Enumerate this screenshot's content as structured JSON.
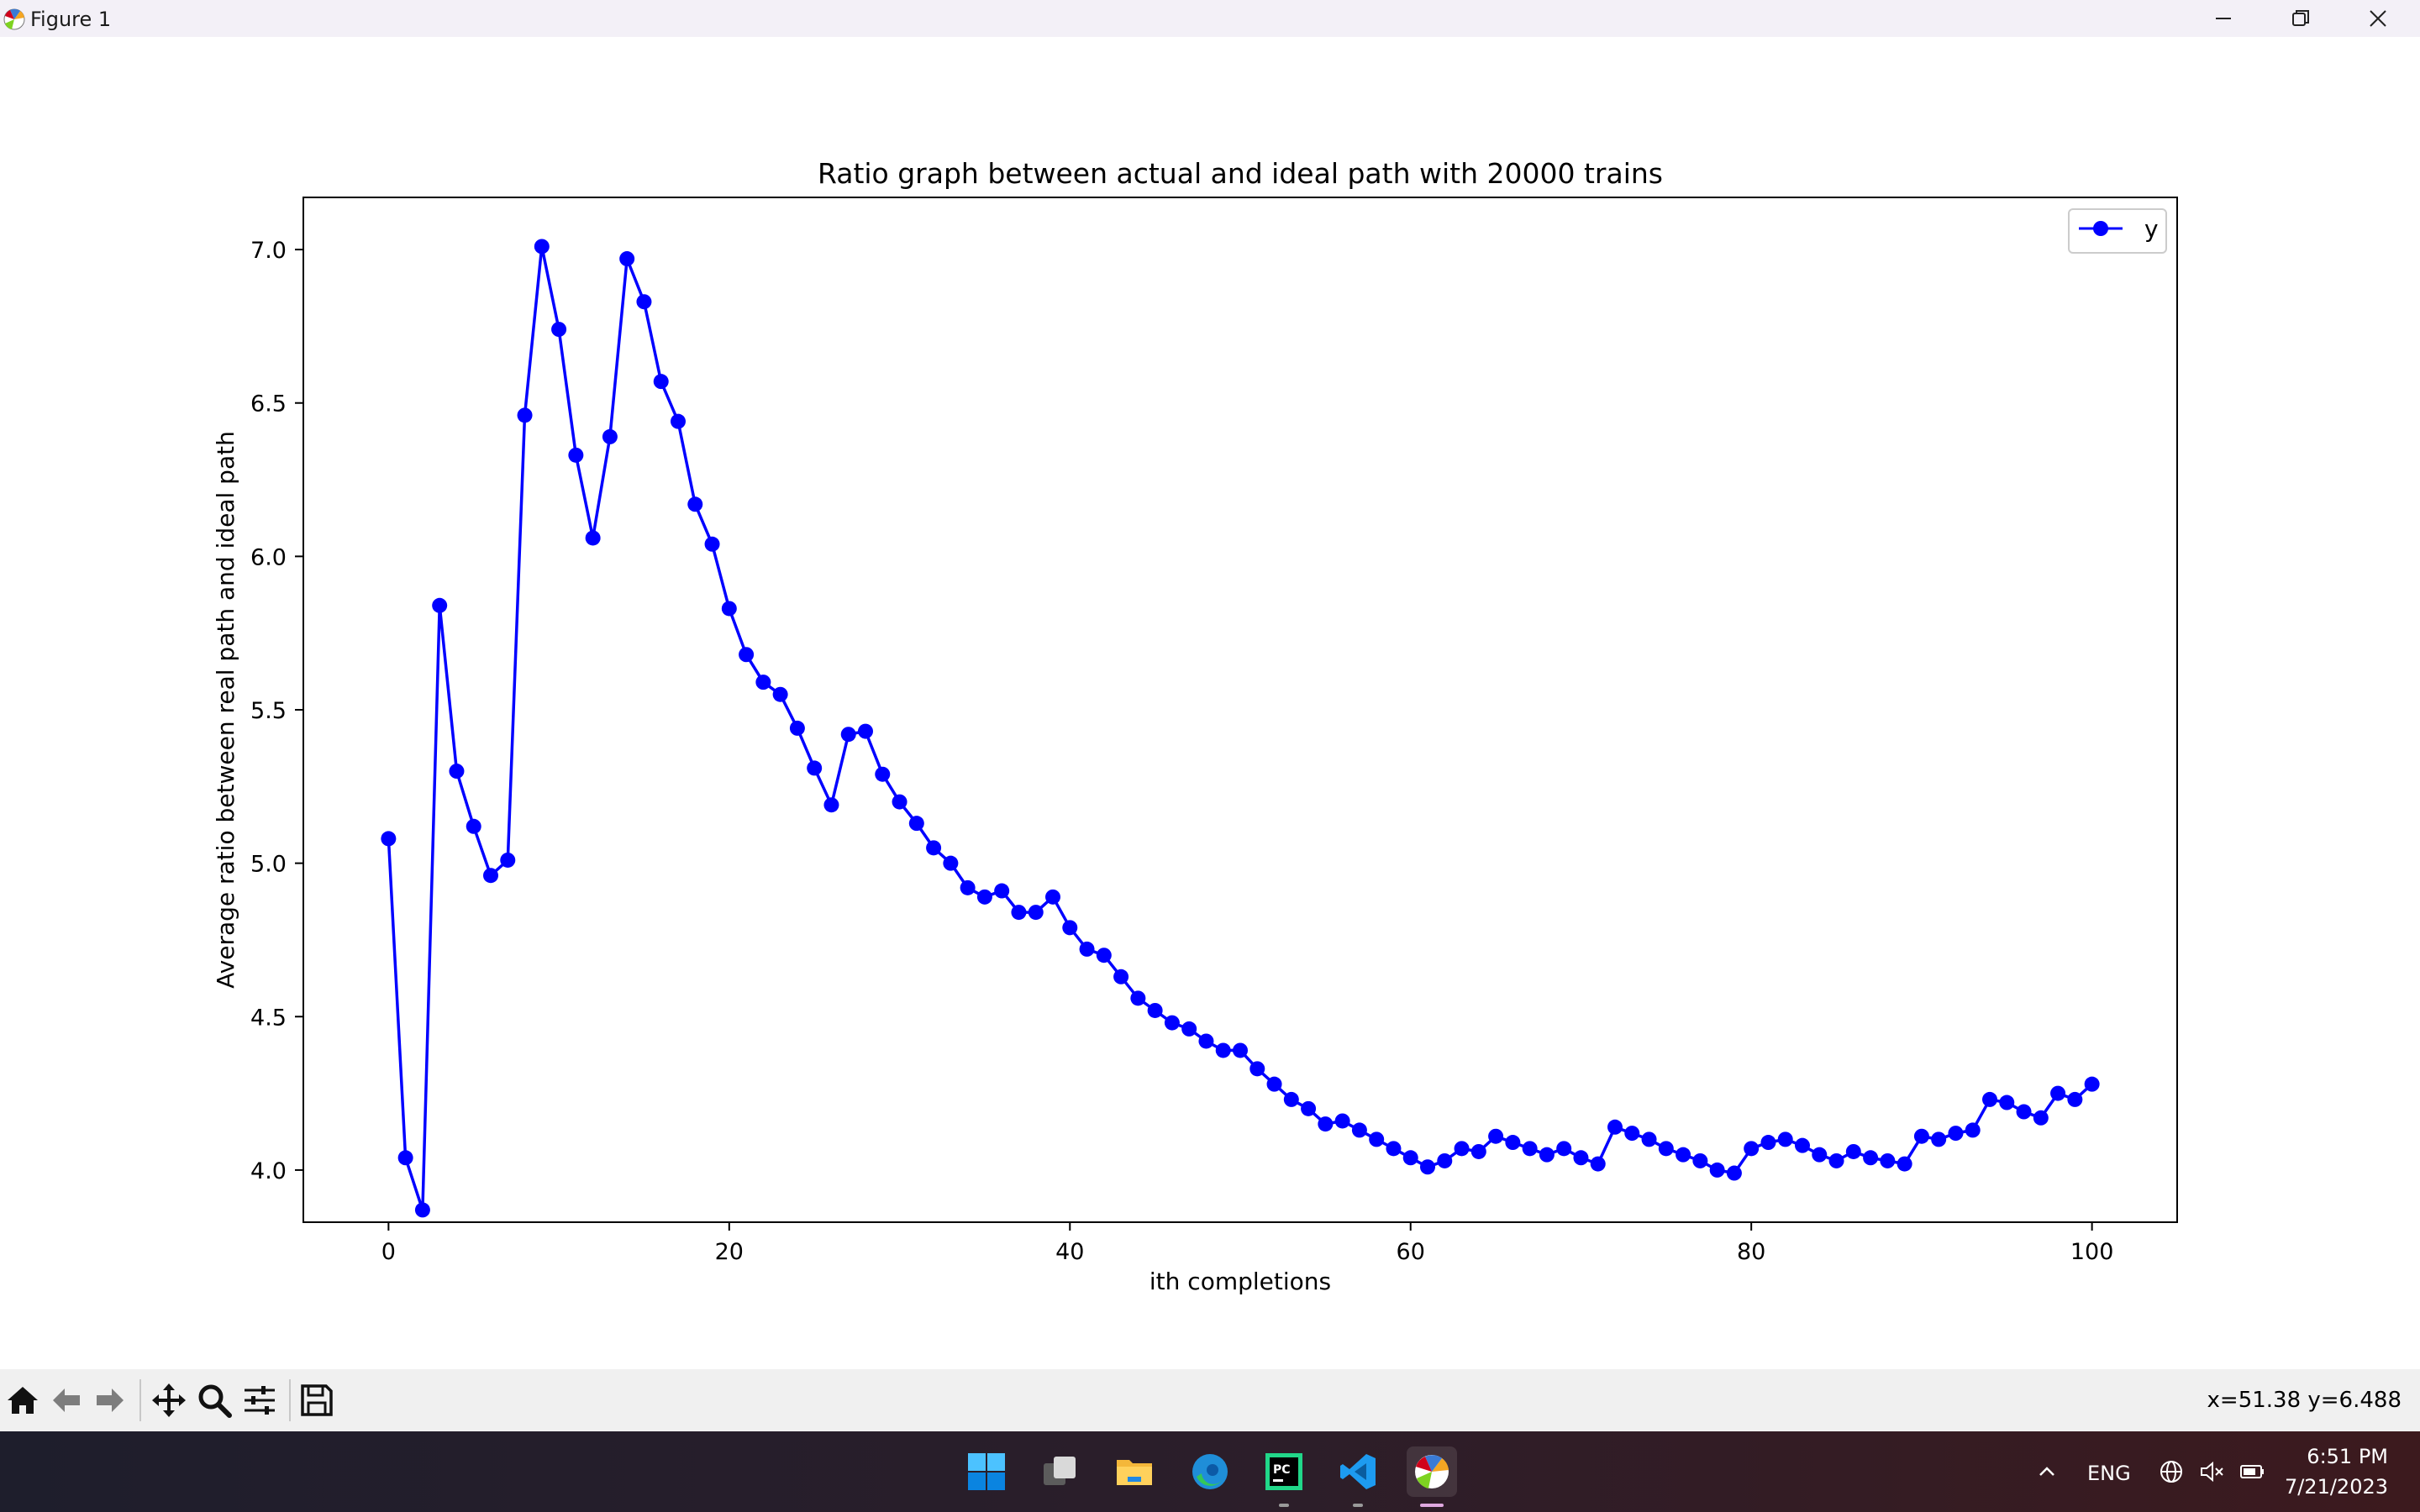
{
  "window": {
    "title": "Figure 1",
    "controls": [
      "minimize-icon",
      "restore-icon",
      "close-icon"
    ]
  },
  "chart_data": {
    "type": "line",
    "title": "Ratio graph between actual and ideal path with 20000 trains",
    "xlabel": "ith completions",
    "ylabel": "Average ratio between real path and ideal path",
    "xlim": [
      -5,
      105
    ],
    "ylim": [
      3.83,
      7.17
    ],
    "xticks": [
      0,
      20,
      40,
      60,
      80,
      100
    ],
    "xtick_labels": [
      "0",
      "20",
      "40",
      "60",
      "80",
      "100"
    ],
    "yticks": [
      4.0,
      4.5,
      5.0,
      5.5,
      6.0,
      6.5,
      7.0
    ],
    "ytick_labels": [
      "4.0",
      "4.5",
      "5.0",
      "5.5",
      "6.0",
      "6.5",
      "7.0"
    ],
    "legend": {
      "position": "top-right",
      "entries": [
        "y"
      ]
    },
    "grid": false,
    "series": [
      {
        "name": "y",
        "color": "#0000ff",
        "marker": "circle",
        "x": [
          0,
          1,
          2,
          3,
          4,
          5,
          6,
          7,
          8,
          9,
          10,
          11,
          12,
          13,
          14,
          15,
          16,
          17,
          18,
          19,
          20,
          21,
          22,
          23,
          24,
          25,
          26,
          27,
          28,
          29,
          30,
          31,
          32,
          33,
          34,
          35,
          36,
          37,
          38,
          39,
          40,
          41,
          42,
          43,
          44,
          45,
          46,
          47,
          48,
          49,
          50,
          51,
          52,
          53,
          54,
          55,
          56,
          57,
          58,
          59,
          60,
          61,
          62,
          63,
          64,
          65,
          66,
          67,
          68,
          69,
          70,
          71,
          72,
          73,
          74,
          75,
          76,
          77,
          78,
          79,
          80,
          81,
          82,
          83,
          84,
          85,
          86,
          87,
          88,
          89,
          90,
          91,
          92,
          93,
          94,
          95,
          96,
          97,
          98,
          99,
          100
        ],
        "values": [
          5.08,
          4.04,
          3.87,
          5.84,
          5.3,
          5.12,
          4.96,
          5.01,
          6.46,
          7.01,
          6.74,
          6.33,
          6.06,
          6.39,
          6.97,
          6.83,
          6.57,
          6.44,
          6.17,
          6.04,
          5.83,
          5.68,
          5.59,
          5.55,
          5.44,
          5.31,
          5.19,
          5.42,
          5.43,
          5.29,
          5.2,
          5.13,
          5.05,
          5.0,
          4.92,
          4.89,
          4.91,
          4.84,
          4.84,
          4.89,
          4.79,
          4.72,
          4.7,
          4.63,
          4.56,
          4.52,
          4.48,
          4.46,
          4.42,
          4.39,
          4.39,
          4.33,
          4.28,
          4.23,
          4.2,
          4.15,
          4.16,
          4.13,
          4.1,
          4.07,
          4.04,
          4.01,
          4.03,
          4.07,
          4.06,
          4.11,
          4.09,
          4.07,
          4.05,
          4.07,
          4.04,
          4.02,
          4.14,
          4.12,
          4.1,
          4.07,
          4.05,
          4.03,
          4.0,
          3.99,
          4.07,
          4.09,
          4.1,
          4.08,
          4.05,
          4.03,
          4.06,
          4.04,
          4.03,
          4.02,
          4.11,
          4.1,
          4.12,
          4.13,
          4.23,
          4.22,
          4.19,
          4.17,
          4.25,
          4.23,
          4.28
        ]
      }
    ]
  },
  "toolbar": {
    "buttons": [
      "home-icon",
      "back-icon",
      "forward-icon",
      "pan-icon",
      "zoom-icon",
      "configure-subplots-icon",
      "save-icon"
    ],
    "coordinates": "x=51.38 y=6.488"
  },
  "taskbar": {
    "apps": [
      "start-icon",
      "task-view-icon",
      "file-explorer-icon",
      "edge-icon",
      "pycharm-icon",
      "vscode-icon",
      "matplotlib-figure-icon"
    ],
    "language": "ENG",
    "time": "6:51 PM",
    "date": "7/21/2023",
    "accent": "#0078d4"
  }
}
